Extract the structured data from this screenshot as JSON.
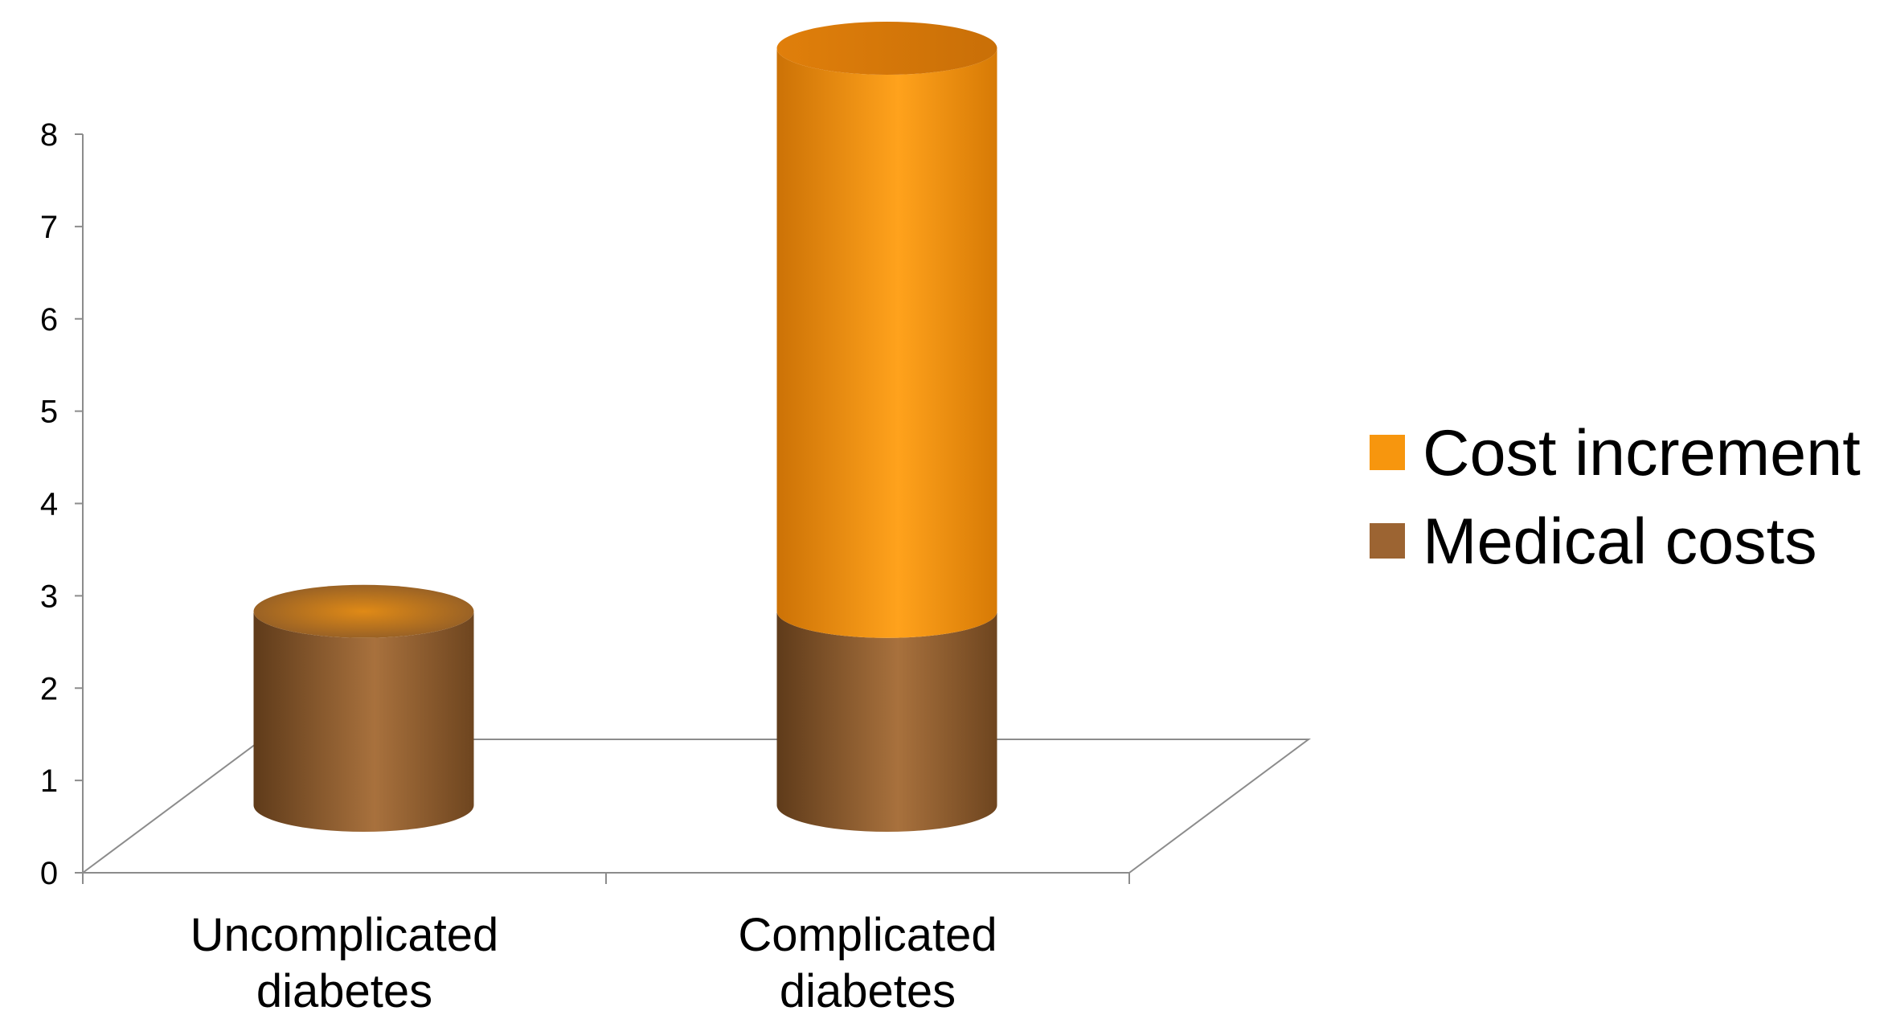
{
  "chart_data": {
    "type": "bar",
    "stacked": true,
    "style": "3d-cylinder",
    "categories": [
      [
        "Uncomplicated",
        "diabetes"
      ],
      [
        "Complicated",
        "diabetes"
      ]
    ],
    "series": [
      {
        "name": "Medical costs",
        "values": [
          2.1,
          2.1
        ],
        "color": "#9c6432"
      },
      {
        "name": "Cost increment",
        "values": [
          0,
          6.1
        ],
        "color": "#f7960e"
      }
    ],
    "yticks": [
      "0",
      "1",
      "2",
      "3",
      "4",
      "5",
      "6",
      "7",
      "8"
    ],
    "ylim": [
      0,
      8
    ],
    "grid": false,
    "legend_position": "right",
    "legend_order": [
      "Cost increment",
      "Medical costs"
    ]
  }
}
